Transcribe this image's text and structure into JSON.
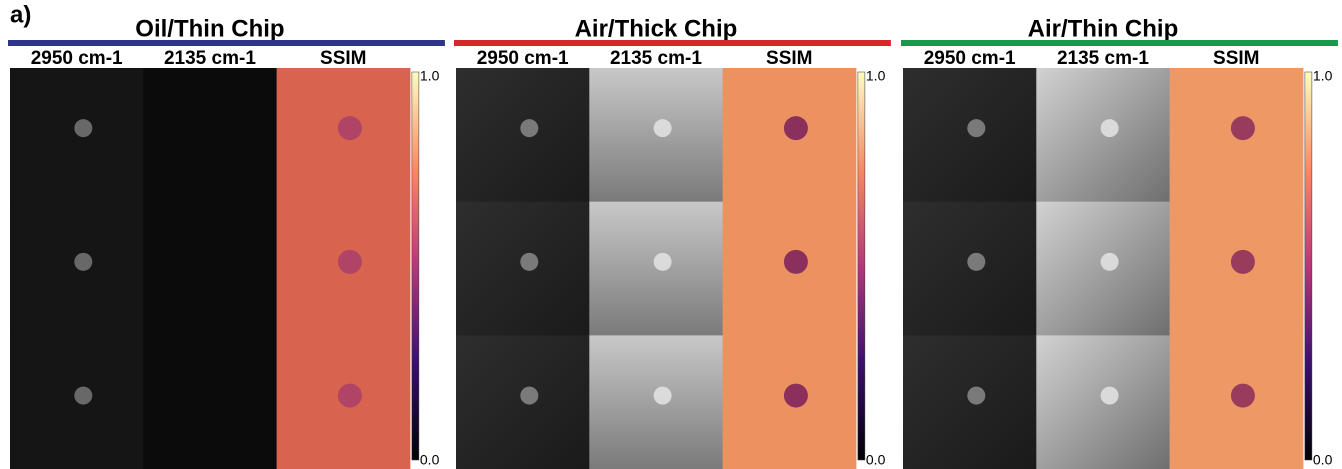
{
  "figure_label": "a)",
  "panels": [
    {
      "title": "Oil/Thin Chip",
      "color": "#2e3486",
      "columns": [
        "2950 cm-1",
        "2135 cm-1",
        "SSIM"
      ]
    },
    {
      "title": "Air/Thick Chip",
      "color": "#d9262b",
      "columns": [
        "2950 cm-1",
        "2135 cm-1",
        "SSIM"
      ]
    },
    {
      "title": "Air/Thin Chip",
      "color": "#149a4a",
      "columns": [
        "2950 cm-1",
        "2135 cm-1",
        "SSIM"
      ]
    }
  ],
  "colorbar_ticks": [
    "1.0",
    "0.0"
  ]
}
